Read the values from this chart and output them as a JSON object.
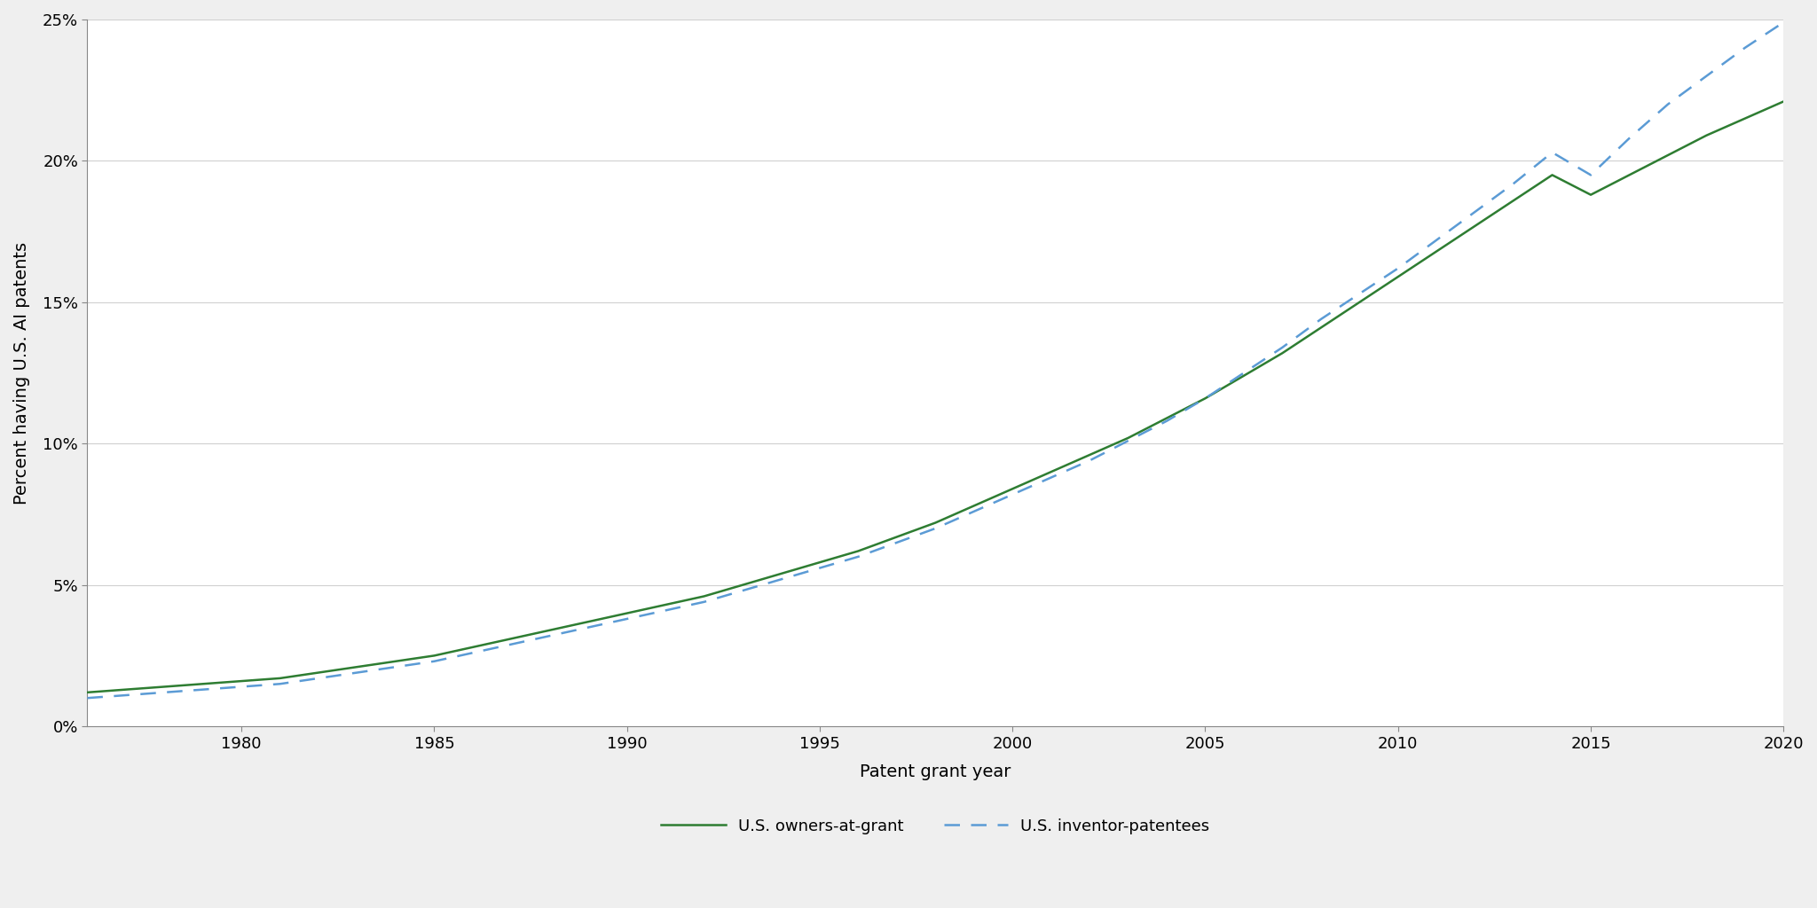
{
  "years_owners": [
    1976,
    1977,
    1978,
    1979,
    1980,
    1981,
    1982,
    1983,
    1984,
    1985,
    1986,
    1987,
    1988,
    1989,
    1990,
    1991,
    1992,
    1993,
    1994,
    1995,
    1996,
    1997,
    1998,
    1999,
    2000,
    2001,
    2002,
    2003,
    2004,
    2005,
    2006,
    2007,
    2008,
    2009,
    2010,
    2011,
    2012,
    2013,
    2014,
    2015,
    2016,
    2017,
    2018,
    2019,
    2020
  ],
  "owners": [
    0.012,
    0.013,
    0.014,
    0.015,
    0.016,
    0.017,
    0.019,
    0.021,
    0.023,
    0.025,
    0.028,
    0.031,
    0.034,
    0.037,
    0.04,
    0.043,
    0.046,
    0.05,
    0.054,
    0.058,
    0.062,
    0.067,
    0.072,
    0.078,
    0.084,
    0.09,
    0.096,
    0.102,
    0.109,
    0.116,
    0.124,
    0.132,
    0.141,
    0.15,
    0.159,
    0.168,
    0.177,
    0.186,
    0.195,
    0.188,
    0.195,
    0.202,
    0.209,
    0.215,
    0.221
  ],
  "years_inventors": [
    1976,
    1977,
    1978,
    1979,
    1980,
    1981,
    1982,
    1983,
    1984,
    1985,
    1986,
    1987,
    1988,
    1989,
    1990,
    1991,
    1992,
    1993,
    1994,
    1995,
    1996,
    1997,
    1998,
    1999,
    2000,
    2001,
    2002,
    2003,
    2004,
    2005,
    2006,
    2007,
    2008,
    2009,
    2010,
    2011,
    2012,
    2013,
    2014,
    2015,
    2016,
    2017,
    2018,
    2019,
    2020
  ],
  "inventors": [
    0.01,
    0.011,
    0.012,
    0.013,
    0.014,
    0.015,
    0.017,
    0.019,
    0.021,
    0.023,
    0.026,
    0.029,
    0.032,
    0.035,
    0.038,
    0.041,
    0.044,
    0.048,
    0.052,
    0.056,
    0.06,
    0.065,
    0.07,
    0.076,
    0.082,
    0.088,
    0.094,
    0.101,
    0.108,
    0.116,
    0.125,
    0.134,
    0.144,
    0.153,
    0.162,
    0.172,
    0.182,
    0.192,
    0.203,
    0.195,
    0.208,
    0.22,
    0.23,
    0.24,
    0.249
  ],
  "owners_color": "#2e7d32",
  "inventors_color": "#5b9bd5",
  "background_color": "#efefef",
  "plot_bg_color": "#ffffff",
  "grid_color": "#d0d0d0",
  "xlabel": "Patent grant year",
  "ylabel": "Percent having U.S. AI patents",
  "xlim": [
    1976,
    2020
  ],
  "ylim": [
    0,
    0.25
  ],
  "xticks": [
    1980,
    1985,
    1990,
    1995,
    2000,
    2005,
    2010,
    2015,
    2020
  ],
  "yticks": [
    0.0,
    0.05,
    0.1,
    0.15,
    0.2,
    0.25
  ],
  "ytick_labels": [
    "0%",
    "5%",
    "10%",
    "15%",
    "20%",
    "25%"
  ],
  "legend_owners": "U.S. owners-at-grant",
  "legend_inventors": "U.S. inventor-patentees",
  "owners_linewidth": 1.8,
  "inventors_linewidth": 1.8,
  "font_size_ticks": 13,
  "font_size_labels": 14,
  "font_size_legend": 13
}
